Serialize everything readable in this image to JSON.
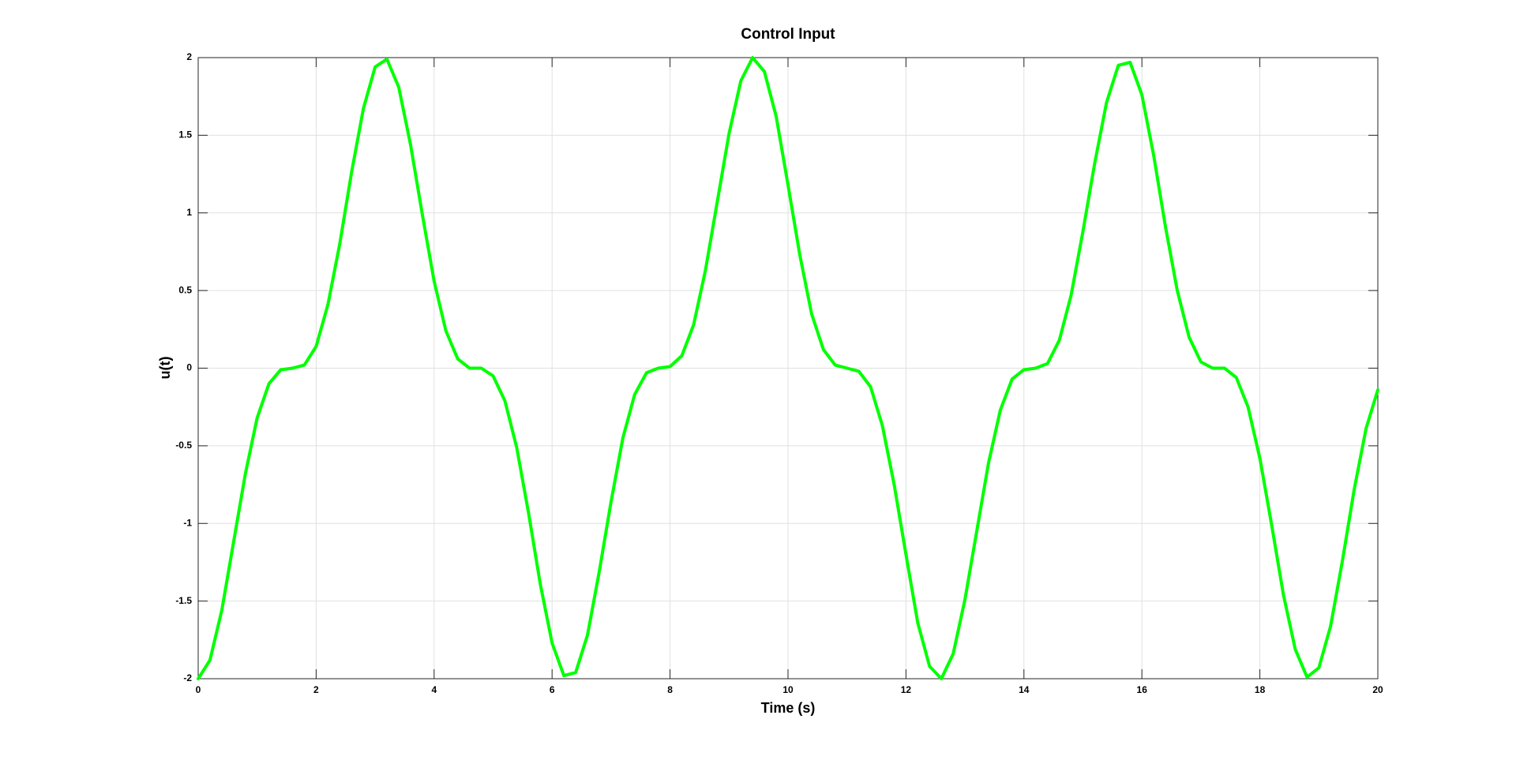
{
  "chart_data": {
    "type": "line",
    "title": "Control Input",
    "x_label": "Time (s)",
    "y_label": "u(t)",
    "x": [
      0,
      0.2,
      0.4,
      0.6,
      0.8,
      1,
      1.2,
      1.4,
      1.6,
      1.8,
      2,
      2.2,
      2.4,
      2.6,
      2.8,
      3,
      3.2,
      3.4,
      3.6,
      3.8,
      4,
      4.2,
      4.4,
      4.6,
      4.8,
      5,
      5.2,
      5.4,
      5.6,
      5.8,
      6,
      6.2,
      6.4,
      6.6,
      6.8,
      7,
      7.2,
      7.4,
      7.6,
      7.8,
      8,
      8.2,
      8.4,
      8.6,
      8.8,
      9,
      9.2,
      9.4,
      9.6,
      9.8,
      10,
      10.2,
      10.4,
      10.6,
      10.8,
      11,
      11.2,
      11.4,
      11.6,
      11.8,
      12,
      12.2,
      12.4,
      12.6,
      12.8,
      13,
      13.2,
      13.4,
      13.6,
      13.8,
      14,
      14.2,
      14.4,
      14.6,
      14.8,
      15,
      15.2,
      15.4,
      15.6,
      15.8,
      16,
      16.2,
      16.4,
      16.6,
      16.8,
      17,
      17.2,
      17.4,
      17.6,
      17.8,
      18,
      18.2,
      18.4,
      18.6,
      18.8,
      19,
      19.2,
      19.4,
      19.6,
      19.8,
      20
    ],
    "series": [
      {
        "color": "#00ff00",
        "values": [
          -2,
          -1.88,
          -1.56,
          -1.12,
          -0.68,
          -0.32,
          -0.1,
          -0.01,
          0,
          0.02,
          0.14,
          0.41,
          0.8,
          1.26,
          1.67,
          1.94,
          1.99,
          1.81,
          1.44,
          0.99,
          0.56,
          0.24,
          0.06,
          0,
          0,
          -0.05,
          -0.21,
          -0.51,
          -0.93,
          -1.39,
          -1.77,
          -1.98,
          -1.96,
          -1.72,
          -1.31,
          -0.86,
          -0.45,
          -0.17,
          -0.03,
          0,
          0.01,
          0.08,
          0.28,
          0.63,
          1.07,
          1.51,
          1.85,
          2,
          1.91,
          1.62,
          1.18,
          0.73,
          0.35,
          0.12,
          0.02,
          0,
          -0.02,
          -0.12,
          -0.37,
          -0.75,
          -1.2,
          -1.64,
          -1.92,
          -2,
          -1.84,
          -1.49,
          -1.05,
          -0.61,
          -0.27,
          -0.07,
          -0.01,
          0,
          0.03,
          0.18,
          0.47,
          0.88,
          1.32,
          1.71,
          1.95,
          1.97,
          1.76,
          1.37,
          0.91,
          0.5,
          0.2,
          0.04,
          0,
          0,
          -0.06,
          -0.25,
          -0.58,
          -1.01,
          -1.46,
          -1.81,
          -1.99,
          -1.93,
          -1.66,
          -1.24,
          -0.78,
          -0.39,
          -0.14
        ]
      }
    ],
    "xlim": [
      0,
      20
    ],
    "xticks": [
      0,
      2,
      4,
      6,
      8,
      10,
      12,
      14,
      16,
      18,
      20
    ],
    "ylim": [
      -2,
      2
    ],
    "yticks": [
      -2,
      -1.5,
      -1,
      -0.5,
      0,
      0.5,
      1,
      1.5,
      2
    ],
    "grid": true
  }
}
